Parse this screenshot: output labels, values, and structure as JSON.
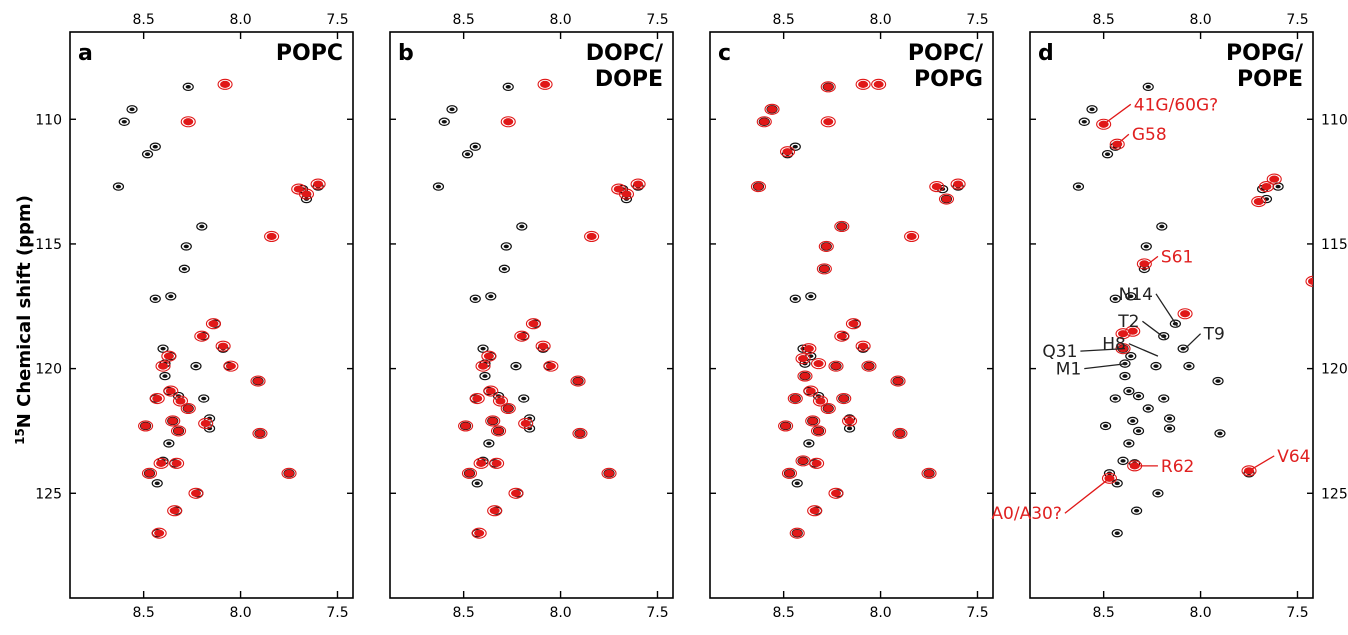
{
  "chart_data": {
    "type": "scatter",
    "title": "",
    "xlabel": "",
    "ylabel": "15N Chemical shift (ppm)",
    "ylabel_sup": "15",
    "ylabel_main": "N Chemical shift (ppm)",
    "xlim": [
      8.88,
      7.42
    ],
    "ylim": [
      106.5,
      129.2
    ],
    "x_ticks": [
      8.5,
      8.0,
      7.5
    ],
    "x_tick_labels": [
      "8.5",
      "8.0",
      "7.5"
    ],
    "y_ticks": [
      110,
      115,
      120,
      125
    ],
    "y_tick_labels": [
      "110",
      "115",
      "120",
      "125"
    ],
    "colors": {
      "reference": "#111111",
      "sample": "#e01818"
    },
    "reference_peaks": [
      [
        8.27,
        108.7
      ],
      [
        8.56,
        109.6
      ],
      [
        8.6,
        110.1
      ],
      [
        8.48,
        111.4
      ],
      [
        8.44,
        111.1
      ],
      [
        8.63,
        112.7
      ],
      [
        8.2,
        114.3
      ],
      [
        8.28,
        115.1
      ],
      [
        8.29,
        116.0
      ],
      [
        8.44,
        117.2
      ],
      [
        8.36,
        117.1
      ],
      [
        8.13,
        118.2
      ],
      [
        8.19,
        118.7
      ],
      [
        8.4,
        119.2
      ],
      [
        8.36,
        119.5
      ],
      [
        8.39,
        119.8
      ],
      [
        8.09,
        119.2
      ],
      [
        8.23,
        119.9
      ],
      [
        8.06,
        119.9
      ],
      [
        8.39,
        120.3
      ],
      [
        7.91,
        120.5
      ],
      [
        8.37,
        120.9
      ],
      [
        8.32,
        121.1
      ],
      [
        8.19,
        121.2
      ],
      [
        8.44,
        121.2
      ],
      [
        8.27,
        121.6
      ],
      [
        8.16,
        122.0
      ],
      [
        8.35,
        122.1
      ],
      [
        8.49,
        122.3
      ],
      [
        8.16,
        122.4
      ],
      [
        8.32,
        122.5
      ],
      [
        7.9,
        122.6
      ],
      [
        8.37,
        123.0
      ],
      [
        8.4,
        123.7
      ],
      [
        8.34,
        123.8
      ],
      [
        8.47,
        124.2
      ],
      [
        8.43,
        124.6
      ],
      [
        8.22,
        125.0
      ],
      [
        7.75,
        124.2
      ],
      [
        8.33,
        125.7
      ],
      [
        8.43,
        126.6
      ],
      [
        7.66,
        113.2
      ],
      [
        7.68,
        112.8
      ],
      [
        7.6,
        112.7
      ]
    ],
    "panels": [
      {
        "letter": "a",
        "title_lines": [
          "POPC"
        ],
        "sample_peaks": [
          [
            8.08,
            108.6
          ],
          [
            8.27,
            110.1
          ],
          [
            7.7,
            112.8
          ],
          [
            7.66,
            113.0
          ],
          [
            7.6,
            112.6
          ],
          [
            7.84,
            114.7
          ],
          [
            8.14,
            118.2
          ],
          [
            8.2,
            118.7
          ],
          [
            8.09,
            119.1
          ],
          [
            8.37,
            119.5
          ],
          [
            8.4,
            119.9
          ],
          [
            8.05,
            119.9
          ],
          [
            7.91,
            120.5
          ],
          [
            8.36,
            120.9
          ],
          [
            8.43,
            121.2
          ],
          [
            8.31,
            121.3
          ],
          [
            8.27,
            121.6
          ],
          [
            8.18,
            122.2
          ],
          [
            8.35,
            122.1
          ],
          [
            8.49,
            122.3
          ],
          [
            8.32,
            122.5
          ],
          [
            7.9,
            122.6
          ],
          [
            8.33,
            123.8
          ],
          [
            8.41,
            123.8
          ],
          [
            8.47,
            124.2
          ],
          [
            8.23,
            125.0
          ],
          [
            7.75,
            124.2
          ],
          [
            8.34,
            125.7
          ],
          [
            8.42,
            126.6
          ]
        ],
        "annotations": []
      },
      {
        "letter": "b",
        "title_lines": [
          "DOPC/",
          "DOPE"
        ],
        "sample_peaks": [
          [
            8.08,
            108.6
          ],
          [
            8.27,
            110.1
          ],
          [
            7.7,
            112.8
          ],
          [
            7.66,
            113.0
          ],
          [
            7.6,
            112.6
          ],
          [
            7.84,
            114.7
          ],
          [
            8.14,
            118.2
          ],
          [
            8.2,
            118.7
          ],
          [
            8.09,
            119.1
          ],
          [
            8.37,
            119.5
          ],
          [
            8.4,
            119.9
          ],
          [
            8.05,
            119.9
          ],
          [
            7.91,
            120.5
          ],
          [
            8.36,
            120.9
          ],
          [
            8.43,
            121.2
          ],
          [
            8.31,
            121.3
          ],
          [
            8.27,
            121.6
          ],
          [
            8.18,
            122.2
          ],
          [
            8.35,
            122.1
          ],
          [
            8.49,
            122.3
          ],
          [
            8.32,
            122.5
          ],
          [
            7.9,
            122.6
          ],
          [
            8.33,
            123.8
          ],
          [
            8.41,
            123.8
          ],
          [
            8.47,
            124.2
          ],
          [
            8.23,
            125.0
          ],
          [
            7.75,
            124.2
          ],
          [
            8.34,
            125.7
          ],
          [
            8.42,
            126.6
          ]
        ],
        "annotations": []
      },
      {
        "letter": "c",
        "title_lines": [
          "POPC/",
          "POPG"
        ],
        "sample_peaks": [
          [
            8.27,
            108.7
          ],
          [
            8.09,
            108.6
          ],
          [
            8.01,
            108.6
          ],
          [
            8.56,
            109.6
          ],
          [
            8.6,
            110.1
          ],
          [
            8.27,
            110.1
          ],
          [
            8.48,
            111.3
          ],
          [
            8.63,
            112.7
          ],
          [
            7.71,
            112.7
          ],
          [
            7.66,
            113.2
          ],
          [
            7.6,
            112.6
          ],
          [
            8.2,
            114.3
          ],
          [
            8.28,
            115.1
          ],
          [
            7.84,
            114.7
          ],
          [
            8.29,
            116.0
          ],
          [
            8.14,
            118.2
          ],
          [
            8.2,
            118.7
          ],
          [
            8.37,
            119.2
          ],
          [
            8.09,
            119.1
          ],
          [
            8.4,
            119.6
          ],
          [
            8.32,
            119.8
          ],
          [
            8.23,
            119.9
          ],
          [
            8.06,
            119.9
          ],
          [
            8.39,
            120.3
          ],
          [
            7.91,
            120.5
          ],
          [
            8.36,
            120.9
          ],
          [
            8.44,
            121.2
          ],
          [
            8.31,
            121.3
          ],
          [
            8.27,
            121.6
          ],
          [
            8.19,
            121.2
          ],
          [
            8.16,
            122.1
          ],
          [
            8.35,
            122.1
          ],
          [
            8.49,
            122.3
          ],
          [
            8.32,
            122.5
          ],
          [
            7.9,
            122.6
          ],
          [
            8.4,
            123.7
          ],
          [
            8.33,
            123.8
          ],
          [
            8.47,
            124.2
          ],
          [
            8.23,
            125.0
          ],
          [
            7.75,
            124.2
          ],
          [
            8.34,
            125.7
          ],
          [
            8.43,
            126.6
          ]
        ],
        "annotations": []
      },
      {
        "letter": "d",
        "title_lines": [
          "POPG/",
          "POPE"
        ],
        "sample_peaks": [
          [
            8.5,
            110.2
          ],
          [
            8.43,
            111.0
          ],
          [
            7.7,
            113.3
          ],
          [
            7.66,
            112.7
          ],
          [
            7.62,
            112.4
          ],
          [
            8.29,
            115.8
          ],
          [
            7.42,
            116.5
          ],
          [
            8.08,
            117.8
          ],
          [
            8.4,
            118.6
          ],
          [
            8.35,
            118.5
          ],
          [
            8.4,
            119.2
          ],
          [
            8.34,
            123.9
          ],
          [
            8.47,
            124.4
          ],
          [
            7.75,
            124.1
          ]
        ],
        "annotations": [
          {
            "text": "41G/60G?",
            "color": "red",
            "peak": [
              8.5,
              110.2
            ],
            "label_at": [
              8.36,
              109.4
            ]
          },
          {
            "text": "G58",
            "color": "red",
            "peak": [
              8.43,
              111.0
            ],
            "label_at": [
              8.37,
              110.6
            ]
          },
          {
            "text": "S61",
            "color": "red",
            "peak": [
              8.27,
              115.8
            ],
            "label_at": [
              8.22,
              115.5
            ]
          },
          {
            "text": "N14",
            "color": "black",
            "peak": [
              8.12,
              118.3
            ],
            "label_at": [
              8.23,
              117.0
            ]
          },
          {
            "text": "T2",
            "color": "black",
            "peak": [
              8.18,
              118.8
            ],
            "label_at": [
              8.3,
              118.1
            ]
          },
          {
            "text": "H8",
            "color": "black",
            "peak": [
              8.22,
              119.5
            ],
            "label_at": [
              8.37,
              119.0
            ]
          },
          {
            "text": "T9",
            "color": "black",
            "peak": [
              8.08,
              119.2
            ],
            "label_at": [
              8.0,
              118.6
            ]
          },
          {
            "text": "Q31",
            "color": "black",
            "peak": [
              8.39,
              119.2
            ],
            "label_at": [
              8.62,
              119.3
            ]
          },
          {
            "text": "M1",
            "color": "black",
            "peak": [
              8.38,
              119.8
            ],
            "label_at": [
              8.6,
              120.0
            ]
          },
          {
            "text": "R62",
            "color": "red",
            "peak": [
              8.34,
              123.9
            ],
            "label_at": [
              8.22,
              123.9
            ]
          },
          {
            "text": "V64",
            "color": "red",
            "peak": [
              7.75,
              124.1
            ],
            "label_at": [
              7.62,
              123.5
            ]
          },
          {
            "text": "A0/A30?",
            "color": "red",
            "peak": [
              8.47,
              124.4
            ],
            "label_at": [
              8.7,
              125.8
            ]
          }
        ]
      }
    ],
    "grid": false,
    "legend": "none"
  }
}
